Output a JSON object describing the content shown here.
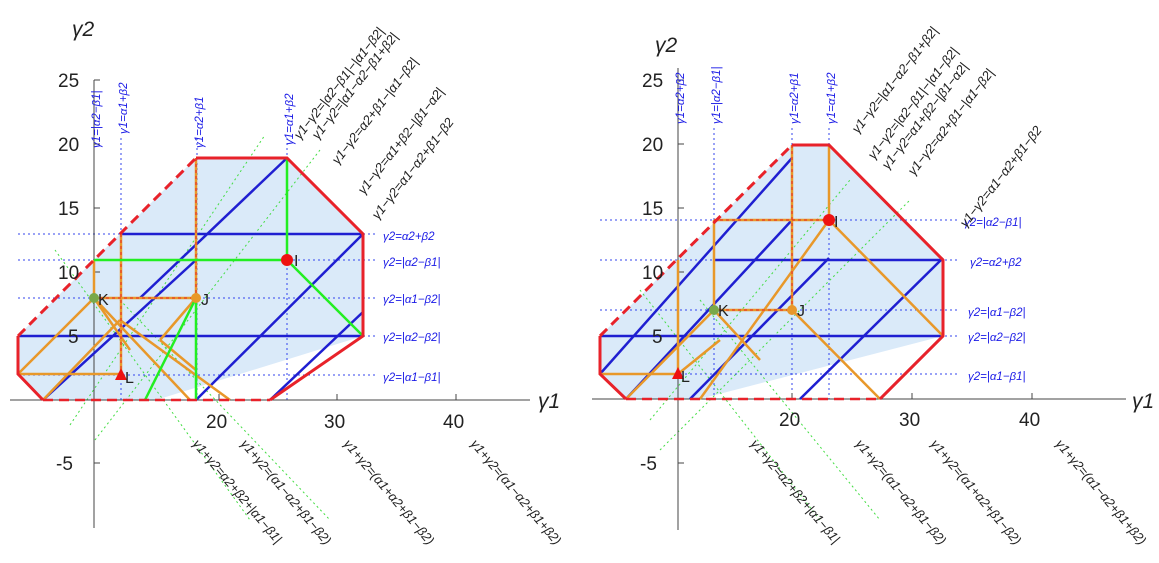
{
  "colors": {
    "region_fill": "#daeaf9",
    "boundary": "#e8222a",
    "level_blue": "#1f1fd1",
    "path_orange": "#e8982a",
    "path_green": "#22ee22",
    "guide_blue": "#3344ee",
    "guide_green": "#44dd44",
    "dot_red": "#ee1111",
    "dot_olive": "#79a84a",
    "dot_orange": "#e8982a"
  },
  "panels": [
    {
      "axes": {
        "x_label": "γ1",
        "y_label": "γ2",
        "x_ticks": [
          "20",
          "30",
          "40"
        ],
        "y_ticks": [
          "-5",
          "5",
          "10",
          "15",
          "20",
          "25"
        ],
        "xlim": [
          -1,
          47
        ],
        "ylim": [
          -9,
          27
        ]
      },
      "vertical_labels": [
        "γ1=|α2−β1|",
        "γ1=α1+β2",
        "γ1=α2+β1",
        "γ1=α1+β2"
      ],
      "horizontal_labels": [
        "γ2=α2+β2",
        "γ2=|α2−β1|",
        "γ2=|α1−β2|",
        "γ2=|α2−β2|",
        "γ2=|α1−β1|"
      ],
      "diff_labels": [
        "γ1−γ2=|α2−β1|−|α1−β2|",
        "γ1−γ2=|α1−α2−β1+β2|",
        "γ1−γ2=α2+β1−|α1−β2|",
        "γ1−γ2=α1+β2−|β1−α2|",
        "γ1−γ2=α1−α2+β1−β2"
      ],
      "sum_labels": [
        "γ1+γ2=α2+β2+|α1−β1|",
        "γ1+γ2=(α1−α2+β1−β2)",
        "γ1+γ2=(α1+α2+β1−β2)",
        "γ1+γ2=(α1−α2+β1+β2)"
      ],
      "points": [
        {
          "label": "I",
          "x": 26,
          "y": 11,
          "color": "#ee1111",
          "shape": "circle"
        },
        {
          "label": "J",
          "x": 19,
          "y": 8,
          "color": "#e8982a",
          "shape": "circle"
        },
        {
          "label": "K",
          "x": 12,
          "y": 8,
          "color": "#79a84a",
          "shape": "circle"
        },
        {
          "label": "L",
          "x": 14,
          "y": 2,
          "color": "#ee1111",
          "shape": "triangle"
        }
      ]
    },
    {
      "axes": {
        "x_label": "γ1",
        "y_label": "γ2",
        "x_ticks": [
          "20",
          "30",
          "40"
        ],
        "y_ticks": [
          "-5",
          "5",
          "10",
          "15",
          "20",
          "25"
        ],
        "xlim": [
          -1,
          47
        ],
        "ylim": [
          -9,
          27
        ]
      },
      "vertical_labels": [
        "γ1=α2+β2",
        "γ1=|α2−β1|",
        "γ1=α2+β1",
        "γ1=α1+β2"
      ],
      "horizontal_labels": [
        "γ2=|α2−β1|",
        "γ2=α2+β2",
        "γ2=|α1−β2|",
        "γ2=|α2−β2|",
        "γ2=|α1−β1|"
      ],
      "diff_labels": [
        "γ1−γ2=|α1−α2−β1+β2|",
        "γ1−γ2=|α2−β1|−|α1−β2|",
        "γ1−γ2=α1+β2−|β1−α2|",
        "γ1−γ2=α2+β1−|α1−β2|",
        "γ1−γ2=α1−α2+β1−β2"
      ],
      "extra_label": "γ1+γ2=|α2−β1|",
      "sum_labels": [
        "γ1+γ2=α2+β2+|α1−β1|",
        "γ1+γ2=(α1−α2+β1−β2)",
        "γ1+γ2=(α1+α2+β1−β2)",
        "γ1+γ2=(α1−α2+β1+β2)"
      ],
      "points": [
        {
          "label": "I",
          "x": 23,
          "y": 14,
          "color": "#ee1111",
          "shape": "circle"
        },
        {
          "label": "J",
          "x": 20,
          "y": 7,
          "color": "#e8982a",
          "shape": "circle"
        },
        {
          "label": "K",
          "x": 14,
          "y": 7,
          "color": "#79a84a",
          "shape": "circle"
        },
        {
          "label": "L",
          "x": 11,
          "y": 2,
          "color": "#ee1111",
          "shape": "triangle"
        }
      ]
    }
  ]
}
